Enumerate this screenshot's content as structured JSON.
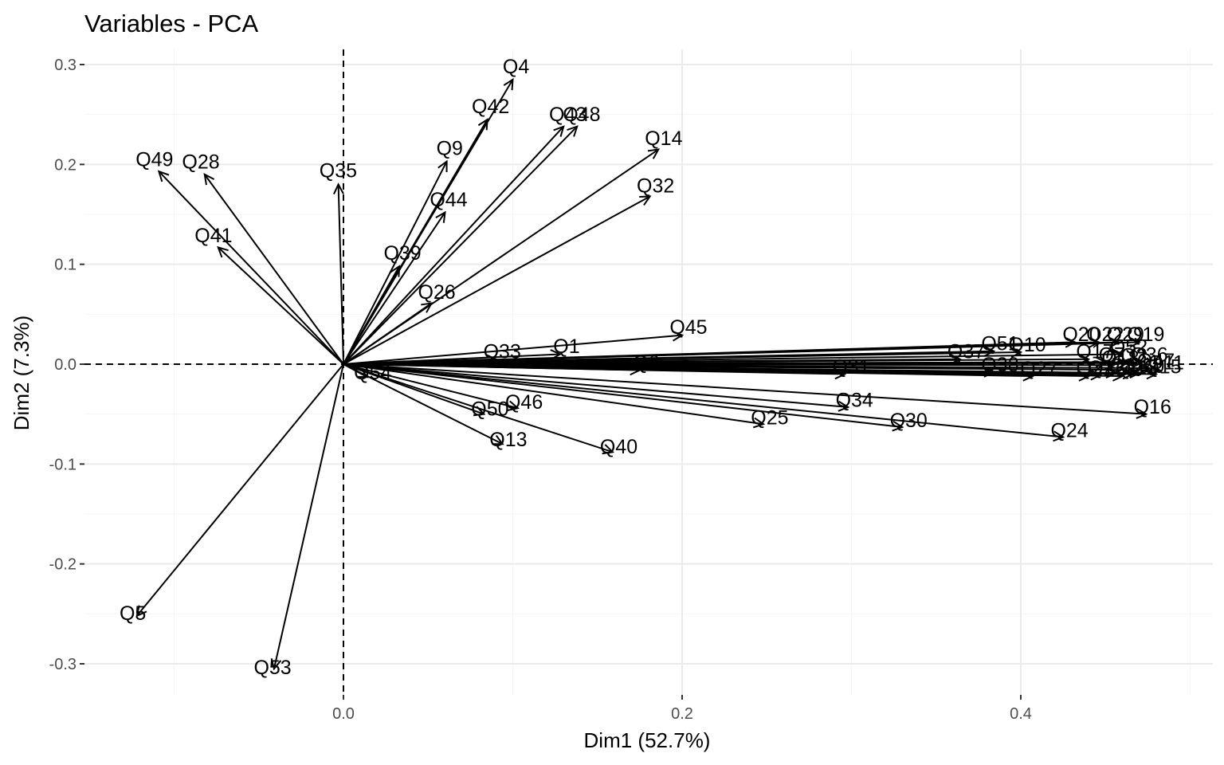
{
  "chart_data": {
    "type": "scatter",
    "title": "Variables - PCA",
    "xlabel": "Dim1 (52.7%)",
    "ylabel": "Dim2 (7.3%)",
    "xlim": [
      -0.15,
      0.5
    ],
    "ylim": [
      -0.33,
      0.3
    ],
    "x_ticks": [
      0.0,
      0.2,
      0.4
    ],
    "x_tick_labels": [
      "0.0",
      "0.2",
      "0.4"
    ],
    "y_ticks": [
      -0.3,
      -0.2,
      -0.1,
      0.0,
      0.1,
      0.2,
      0.3
    ],
    "y_tick_labels": [
      "-0.3",
      "-0.2",
      "-0.1",
      "0.0",
      "0.1",
      "0.2",
      "0.3"
    ],
    "grid": true,
    "reference_lines": {
      "x": 0,
      "y": 0
    },
    "variables": [
      {
        "label": "Q4",
        "x": 0.1,
        "y": 0.285
      },
      {
        "label": "Q42",
        "x": 0.085,
        "y": 0.245
      },
      {
        "label": "Q43",
        "x": 0.13,
        "y": 0.238
      },
      {
        "label": "Q48",
        "x": 0.138,
        "y": 0.238
      },
      {
        "label": "Q14",
        "x": 0.186,
        "y": 0.215
      },
      {
        "label": "Q9",
        "x": 0.061,
        "y": 0.203
      },
      {
        "label": "Q32",
        "x": 0.181,
        "y": 0.168
      },
      {
        "label": "Q49",
        "x": -0.109,
        "y": 0.193
      },
      {
        "label": "Q28",
        "x": -0.082,
        "y": 0.19
      },
      {
        "label": "Q35",
        "x": -0.003,
        "y": 0.18
      },
      {
        "label": "Q44",
        "x": 0.06,
        "y": 0.152
      },
      {
        "label": "Q41",
        "x": -0.074,
        "y": 0.117
      },
      {
        "label": "Q39",
        "x": 0.033,
        "y": 0.098
      },
      {
        "label": "Q26",
        "x": 0.052,
        "y": 0.061
      },
      {
        "label": "Q45",
        "x": 0.2,
        "y": 0.029
      },
      {
        "label": "Q1",
        "x": 0.128,
        "y": 0.01
      },
      {
        "label": "Q33",
        "x": 0.09,
        "y": 0.005
      },
      {
        "label": "Q6",
        "x": 0.175,
        "y": -0.006
      },
      {
        "label": "Q54",
        "x": 0.014,
        "y": -0.013
      },
      {
        "label": "Q37",
        "x": 0.364,
        "y": 0.005
      },
      {
        "label": "Q51",
        "x": 0.384,
        "y": 0.013
      },
      {
        "label": "Q10",
        "x": 0.4,
        "y": 0.012
      },
      {
        "label": "Q38",
        "x": 0.384,
        "y": -0.008
      },
      {
        "label": "Q27",
        "x": 0.407,
        "y": -0.012
      },
      {
        "label": "Q20",
        "x": 0.432,
        "y": 0.022
      },
      {
        "label": "Q22",
        "x": 0.446,
        "y": 0.022
      },
      {
        "label": "Q29",
        "x": 0.458,
        "y": 0.022
      },
      {
        "label": "Q19",
        "x": 0.47,
        "y": 0.022
      },
      {
        "label": "Q52",
        "x": 0.46,
        "y": 0.01
      },
      {
        "label": "Q17",
        "x": 0.44,
        "y": 0.005
      },
      {
        "label": "Q7",
        "x": 0.45,
        "y": 0.002
      },
      {
        "label": "Q18",
        "x": 0.455,
        "y": -0.001
      },
      {
        "label": "Q3",
        "x": 0.463,
        "y": 0.001
      },
      {
        "label": "Q36",
        "x": 0.472,
        "y": 0.002
      },
      {
        "label": "Q47",
        "x": 0.476,
        "y": -0.004
      },
      {
        "label": "Q21",
        "x": 0.44,
        "y": -0.012
      },
      {
        "label": "Q23",
        "x": 0.447,
        "y": -0.011
      },
      {
        "label": "Q8",
        "x": 0.456,
        "y": -0.009
      },
      {
        "label": "Q2",
        "x": 0.46,
        "y": -0.012
      },
      {
        "label": "Q12",
        "x": 0.466,
        "y": -0.01
      },
      {
        "label": "Q50",
        "x": 0.47,
        "y": -0.009
      },
      {
        "label": "Q11",
        "x": 0.482,
        "y": -0.006
      },
      {
        "label": "Q15",
        "x": 0.48,
        "y": -0.01
      },
      {
        "label": "Q16",
        "x": 0.474,
        "y": -0.05
      },
      {
        "label": "Q24",
        "x": 0.425,
        "y": -0.073
      },
      {
        "label": "Q31",
        "x": 0.296,
        "y": -0.01
      },
      {
        "label": "Q34",
        "x": 0.298,
        "y": -0.043
      },
      {
        "label": "Q30",
        "x": 0.33,
        "y": -0.063
      },
      {
        "label": "Q25",
        "x": 0.248,
        "y": -0.06
      },
      {
        "label": "Q46",
        "x": 0.103,
        "y": -0.044
      },
      {
        "label": "Q50b",
        "display": "Q50",
        "x": 0.083,
        "y": -0.05
      },
      {
        "label": "Q13",
        "x": 0.094,
        "y": -0.08
      },
      {
        "label": "Q40",
        "x": 0.159,
        "y": -0.088
      },
      {
        "label": "Q5",
        "x": -0.122,
        "y": -0.252
      },
      {
        "label": "Q53",
        "x": -0.041,
        "y": -0.305
      }
    ]
  }
}
